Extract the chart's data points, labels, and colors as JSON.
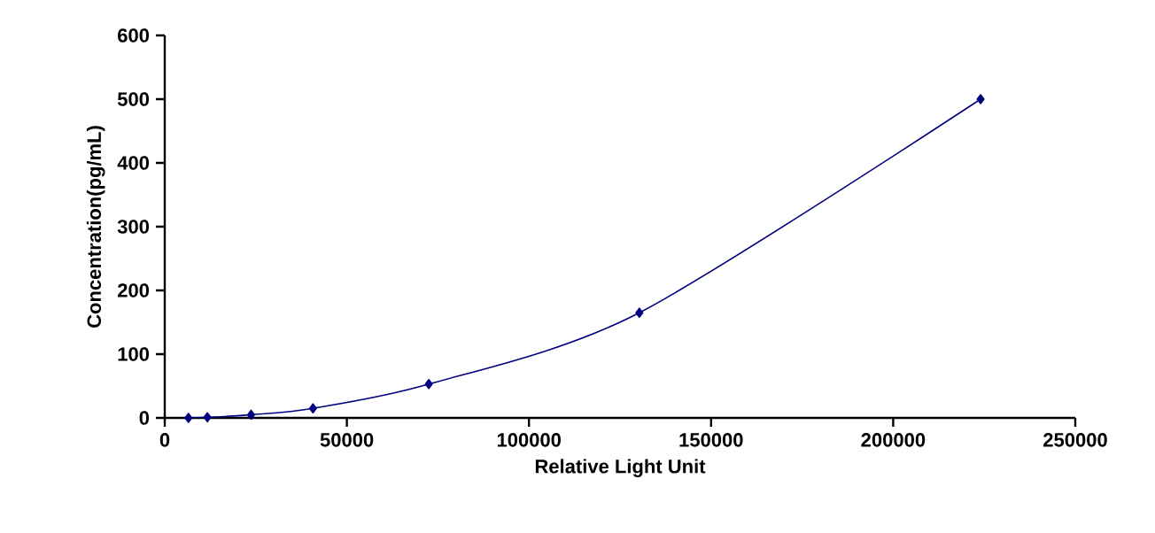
{
  "chart_data": {
    "type": "line",
    "xlabel": "Relative Light Unit",
    "ylabel": "Concentration(pg/mL)",
    "x": [
      6500,
      11700,
      23700,
      40700,
      72500,
      130300,
      224000
    ],
    "series": [
      {
        "color": "#000080",
        "values": [
          0,
          1,
          5,
          15,
          53,
          165,
          500
        ]
      }
    ],
    "xlim": [
      0,
      250000
    ],
    "xticks": [
      0,
      50000,
      100000,
      150000,
      200000,
      250000
    ],
    "ylim": [
      0,
      600
    ],
    "yticks": [
      0,
      100,
      200,
      300,
      400,
      500,
      600
    ],
    "grid": false,
    "marker": "diamond",
    "line_style": "solid"
  }
}
